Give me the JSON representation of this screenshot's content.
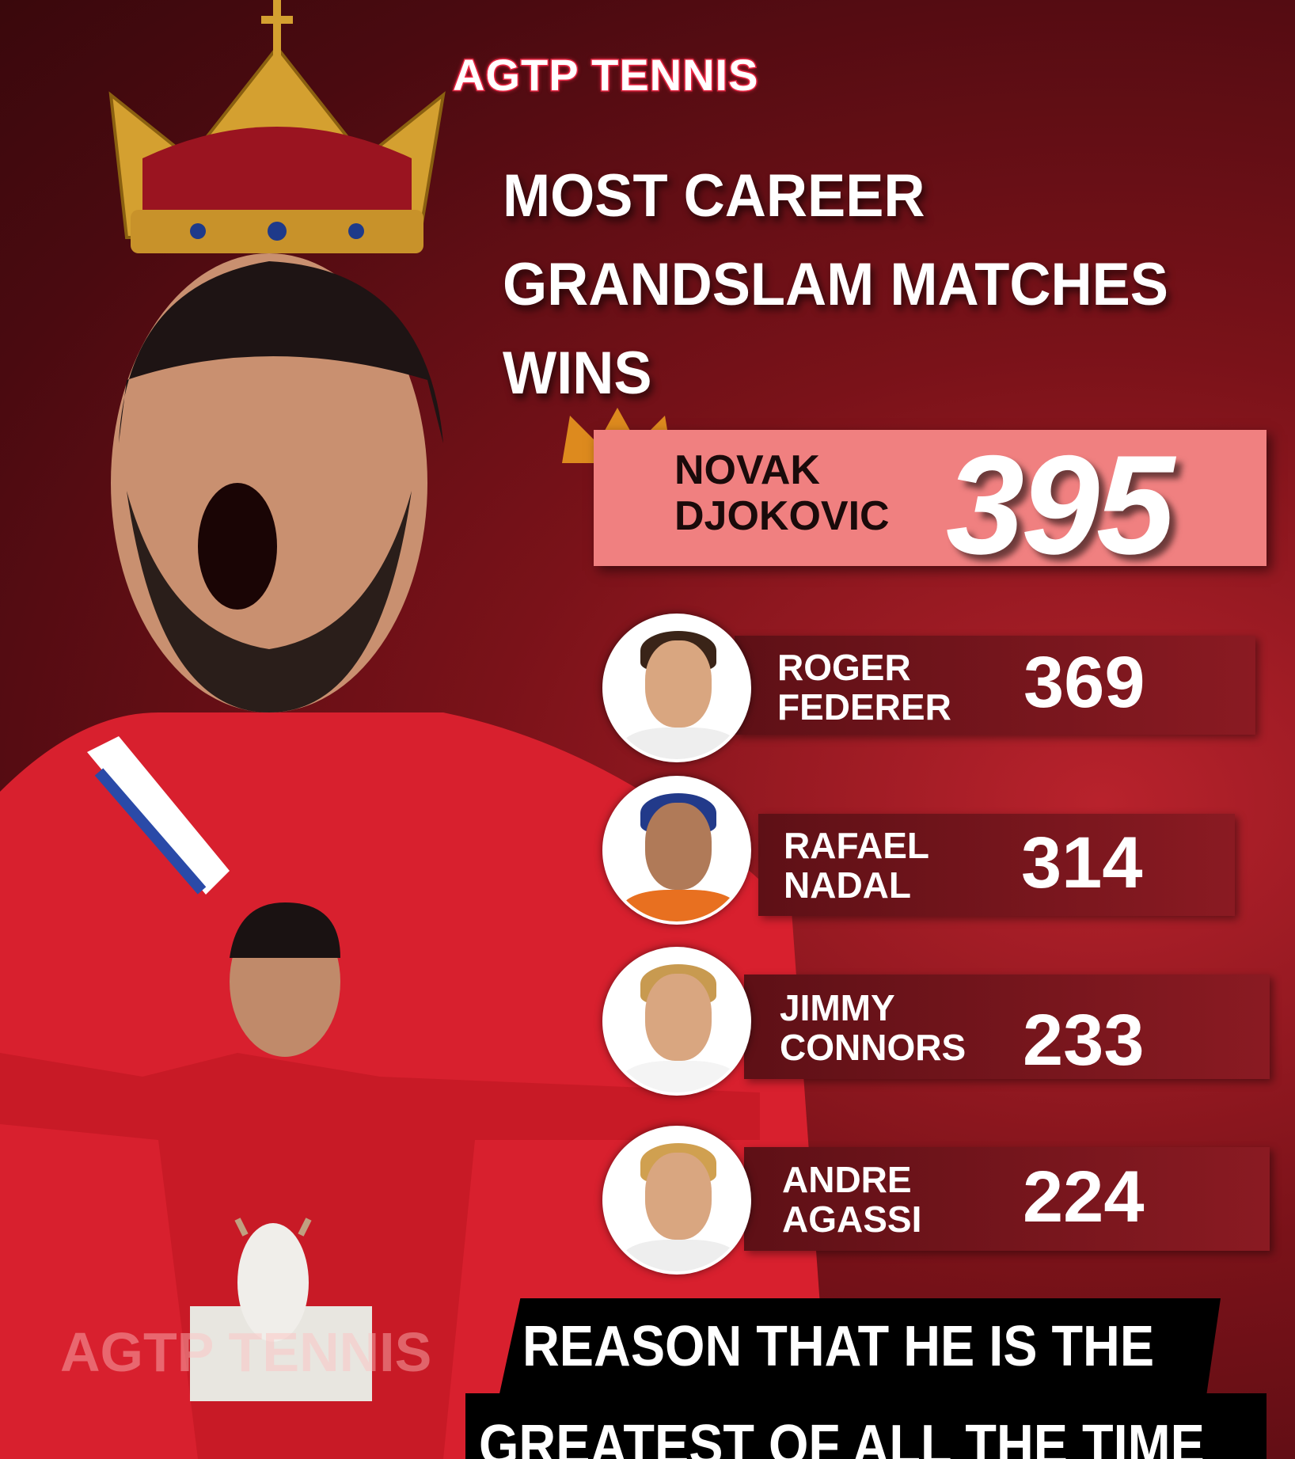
{
  "brand": "AGTP TENNIS",
  "title_lines": [
    "MOST CAREER",
    "GRANDSLAM MATCHES",
    "WINS"
  ],
  "leader": {
    "name_lines": [
      "NOVAK",
      "DJOKOVIC"
    ],
    "wins": "395"
  },
  "players": [
    {
      "name_lines": [
        "ROGER",
        "FEDERER"
      ],
      "wins": "369"
    },
    {
      "name_lines": [
        "RAFAEL",
        "NADAL"
      ],
      "wins": "314"
    },
    {
      "name_lines": [
        "JIMMY",
        "CONNORS"
      ],
      "wins": "233"
    },
    {
      "name_lines": [
        "ANDRE",
        "AGASSI"
      ],
      "wins": "224"
    }
  ],
  "watermark": "AGTP TENNIS",
  "banner_lines": [
    "REASON THAT HE IS THE",
    "GREATEST OF ALL THE TIME"
  ],
  "colors": {
    "background": "#7a1219",
    "leader_box": "#f08080",
    "bar": "#6e141b",
    "banner": "#000000"
  }
}
